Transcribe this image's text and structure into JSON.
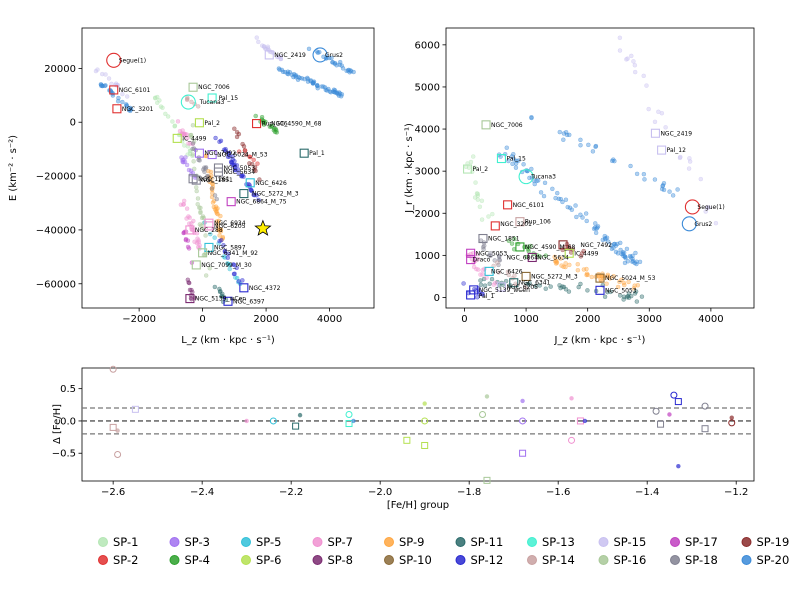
{
  "chart_data": [
    {
      "type": "scatter",
      "id": "energy",
      "xlabel": "L_z (km · kpc · s⁻¹)",
      "ylabel": "E (km⁻² · s⁻²)",
      "xlim": [
        -3800,
        5400
      ],
      "ylim": [
        -69000,
        35000
      ],
      "xticks": [
        -2000,
        0,
        2000,
        4000
      ],
      "yticks": [
        -60000,
        -40000,
        -20000,
        0,
        20000
      ],
      "xtick_labels": [
        "−2000",
        "0",
        "2000",
        "4000"
      ],
      "ytick_labels": [
        "−60000",
        "−40000",
        "−20000",
        "0",
        "20000"
      ],
      "annotations": [
        {
          "text": "Segue(1)",
          "x": -2800,
          "y": 23000
        },
        {
          "text": "NGC_6101",
          "x": -2800,
          "y": 12000
        },
        {
          "text": "NGC_3201",
          "x": -2700,
          "y": 5000
        },
        {
          "text": "NGC_7006",
          "x": -300,
          "y": 13000
        },
        {
          "text": "Tucana3",
          "x": -250,
          "y": 7500
        },
        {
          "text": "Pal_15",
          "x": 350,
          "y": 9000
        },
        {
          "text": "Pal_2",
          "x": -100,
          "y": -200
        },
        {
          "text": "IC_4499",
          "x": -800,
          "y": -6000
        },
        {
          "text": "NGC_7492",
          "x": -100,
          "y": -11500
        },
        {
          "text": "NGC_5024_M_53",
          "x": 300,
          "y": -12000
        },
        {
          "text": "NGC_5053",
          "x": 500,
          "y": -17000
        },
        {
          "text": "NGC_5634",
          "x": 500,
          "y": -18500
        },
        {
          "text": "NGC_1261",
          "x": -300,
          "y": -21000
        },
        {
          "text": "NGC_1851",
          "x": -200,
          "y": -21500
        },
        {
          "text": "NGC_6426",
          "x": 1500,
          "y": -22500
        },
        {
          "text": "NGC_5272_M_3",
          "x": 1400,
          "y": -26500
        },
        {
          "text": "NGC_6864_M_75",
          "x": 900,
          "y": -29500
        },
        {
          "text": "NGC_288",
          "x": -400,
          "y": -40000
        },
        {
          "text": "NGC_6934",
          "x": 200,
          "y": -37500
        },
        {
          "text": "NGC_6205",
          "x": 200,
          "y": -38500
        },
        {
          "text": "NGC_5897",
          "x": 200,
          "y": -46500
        },
        {
          "text": "NGC_6341_M_92",
          "x": 0,
          "y": -48500
        },
        {
          "text": "NGC_7099_M_30",
          "x": -200,
          "y": -53000
        },
        {
          "text": "NGC_4372",
          "x": 1300,
          "y": -61500
        },
        {
          "text": "NGC_5139_wCen",
          "x": -400,
          "y": -65500
        },
        {
          "text": "NGC_6397",
          "x": 800,
          "y": -66500
        },
        {
          "text": "NGC_2419",
          "x": 2100,
          "y": 25000
        },
        {
          "text": "Grus2",
          "x": 3700,
          "y": 25000
        },
        {
          "text": "Rup_106",
          "x": 1700,
          "y": -500
        },
        {
          "text": "NGC_4590_M_68",
          "x": 2000,
          "y": -500
        },
        {
          "text": "Pal_1",
          "x": 3200,
          "y": -11500
        }
      ]
    },
    {
      "type": "scatter",
      "id": "actions",
      "xlabel": "J_z (km · kpc · s⁻¹)",
      "ylabel": "J_r (km · kpc · s⁻¹)",
      "xlim": [
        -300,
        4700
      ],
      "ylim": [
        -250,
        6400
      ],
      "xticks": [
        0,
        1000,
        2000,
        3000,
        4000
      ],
      "yticks": [
        0,
        1000,
        2000,
        3000,
        4000,
        5000,
        6000
      ],
      "xtick_labels": [
        "0",
        "1000",
        "2000",
        "3000",
        "4000"
      ],
      "ytick_labels": [
        "0",
        "1000",
        "2000",
        "3000",
        "4000",
        "5000",
        "6000"
      ],
      "annotations": [
        {
          "text": "NGC_7006",
          "x": 350,
          "y": 4100
        },
        {
          "text": "Pal_15",
          "x": 600,
          "y": 3300
        },
        {
          "text": "Pal_2",
          "x": 50,
          "y": 3050
        },
        {
          "text": "Tucana3",
          "x": 1000,
          "y": 2870
        },
        {
          "text": "NGC_6101",
          "x": 700,
          "y": 2200
        },
        {
          "text": "NGC_3201",
          "x": 500,
          "y": 1750
        },
        {
          "text": "Rup_106",
          "x": 900,
          "y": 1800
        },
        {
          "text": "NGC_1851",
          "x": 300,
          "y": 1400
        },
        {
          "text": "NGC_7492",
          "x": 1800,
          "y": 1250
        },
        {
          "text": "NGC_4590_M_68",
          "x": 900,
          "y": 1200
        },
        {
          "text": "IC_4499",
          "x": 1700,
          "y": 1050
        },
        {
          "text": "NGC_5634",
          "x": 1100,
          "y": 950
        },
        {
          "text": "NGC_5053",
          "x": 100,
          "y": 1050
        },
        {
          "text": "NGC_6864",
          "x": 600,
          "y": 950
        },
        {
          "text": "Draco",
          "x": 50,
          "y": 900
        },
        {
          "text": "NGC_6426",
          "x": 350,
          "y": 620
        },
        {
          "text": "NGC_5272_M_3",
          "x": 1000,
          "y": 500
        },
        {
          "text": "NGC_6341",
          "x": 800,
          "y": 350
        },
        {
          "text": "NGC_6205",
          "x": 600,
          "y": 250
        },
        {
          "text": "NGC_5139_wCen",
          "x": 150,
          "y": 180
        },
        {
          "text": "Pal_1",
          "x": 150,
          "y": 40
        },
        {
          "text": "NGC_5024_M_53",
          "x": 2200,
          "y": 460
        },
        {
          "text": "NGC_5053",
          "x": 2200,
          "y": 170
        },
        {
          "text": "NGC_2419",
          "x": 3100,
          "y": 3900
        },
        {
          "text": "Pal_12",
          "x": 3200,
          "y": 3500
        },
        {
          "text": "Segue(1)",
          "x": 3700,
          "y": 2150
        },
        {
          "text": "Grus2",
          "x": 3650,
          "y": 1750
        }
      ]
    },
    {
      "type": "scatter",
      "id": "metallicity",
      "xlabel": "[Fe/H] group",
      "ylabel": "Δ [Fe/H]",
      "xlim": [
        -2.67,
        -1.16
      ],
      "ylim": [
        -0.93,
        0.82
      ],
      "xticks": [
        -2.6,
        -2.4,
        -2.2,
        -2.0,
        -1.8,
        -1.6,
        -1.4,
        -1.2
      ],
      "yticks": [
        -0.5,
        0.0,
        0.5
      ],
      "xtick_labels": [
        "−2.6",
        "−2.4",
        "−2.2",
        "−2.0",
        "−1.8",
        "−1.6",
        "−1.4",
        "−1.2"
      ],
      "ytick_labels": [
        "−0.5",
        "0.0",
        "0.5"
      ],
      "hlines": [
        0.2,
        0.0,
        -0.2
      ],
      "points": [
        {
          "x": -2.6,
          "y": 0.8,
          "g": 13
        },
        {
          "x": -2.6,
          "y": -0.1,
          "g": 13
        },
        {
          "x": -2.59,
          "y": -0.15,
          "g": 13
        },
        {
          "x": -2.59,
          "y": -0.52,
          "g": 13
        },
        {
          "x": -2.55,
          "y": 0.18,
          "g": 14
        },
        {
          "x": -2.3,
          "y": 0.0,
          "g": 6
        },
        {
          "x": -2.24,
          "y": 0.0,
          "g": 4
        },
        {
          "x": -2.19,
          "y": -0.08,
          "g": 10
        },
        {
          "x": -2.18,
          "y": 0.09,
          "g": 10
        },
        {
          "x": -2.07,
          "y": 0.1,
          "g": 12
        },
        {
          "x": -2.07,
          "y": -0.04,
          "g": 12
        },
        {
          "x": -2.06,
          "y": 0.0,
          "g": 19
        },
        {
          "x": -1.94,
          "y": 0.57,
          "g": 20
        },
        {
          "x": -1.94,
          "y": -0.3,
          "g": 5
        },
        {
          "x": -1.9,
          "y": 0.27,
          "g": 5
        },
        {
          "x": -1.9,
          "y": 0.0,
          "g": 5
        },
        {
          "x": -1.9,
          "y": -0.38,
          "g": 5
        },
        {
          "x": -1.76,
          "y": 0.38,
          "g": 15
        },
        {
          "x": -1.77,
          "y": 0.1,
          "g": 15
        },
        {
          "x": -1.76,
          "y": -0.92,
          "g": 15
        },
        {
          "x": -1.68,
          "y": 0.31,
          "g": 2
        },
        {
          "x": -1.68,
          "y": 0.0,
          "g": 2
        },
        {
          "x": -1.68,
          "y": -0.5,
          "g": 2
        },
        {
          "x": -1.57,
          "y": 0.35,
          "g": 6
        },
        {
          "x": -1.57,
          "y": -0.3,
          "g": 6
        },
        {
          "x": -1.55,
          "y": 0.0,
          "g": 6
        },
        {
          "x": -1.54,
          "y": 0.0,
          "g": 11
        },
        {
          "x": -1.38,
          "y": 0.15,
          "g": 17
        },
        {
          "x": -1.37,
          "y": -0.05,
          "g": 17
        },
        {
          "x": -1.35,
          "y": 0.1,
          "g": 16
        },
        {
          "x": -1.34,
          "y": 0.4,
          "g": 11
        },
        {
          "x": -1.33,
          "y": 0.3,
          "g": 11
        },
        {
          "x": -1.33,
          "y": -0.7,
          "g": 11
        },
        {
          "x": -1.27,
          "y": 0.23,
          "g": 17
        },
        {
          "x": -1.27,
          "y": -0.12,
          "g": 17
        },
        {
          "x": -1.21,
          "y": 0.05,
          "g": 18
        },
        {
          "x": -1.21,
          "y": -0.03,
          "g": 18
        }
      ]
    }
  ],
  "legend": [
    {
      "label": "SP-1",
      "color": "#b4e6b4"
    },
    {
      "label": "SP-2",
      "color": "#e03030"
    },
    {
      "label": "SP-3",
      "color": "#a070f0"
    },
    {
      "label": "SP-4",
      "color": "#2ca02c"
    },
    {
      "label": "SP-5",
      "color": "#30c0d8"
    },
    {
      "label": "SP-6",
      "color": "#b4e050"
    },
    {
      "label": "SP-7",
      "color": "#f090d0"
    },
    {
      "label": "SP-8",
      "color": "#7a2a70"
    },
    {
      "label": "SP-9",
      "color": "#ffa640"
    },
    {
      "label": "SP-10",
      "color": "#8a6a38"
    },
    {
      "label": "SP-11",
      "color": "#2a6a6a"
    },
    {
      "label": "SP-12",
      "color": "#2828d0"
    },
    {
      "label": "SP-13",
      "color": "#40f0d0"
    },
    {
      "label": "SP-14",
      "color": "#c8a0a0"
    },
    {
      "label": "SP-15",
      "color": "#c8c0f0"
    },
    {
      "label": "SP-16",
      "color": "#a8c898"
    },
    {
      "label": "SP-17",
      "color": "#c040c0"
    },
    {
      "label": "SP-18",
      "color": "#808090"
    },
    {
      "label": "SP-19",
      "color": "#8a2a2a"
    },
    {
      "label": "SP-20",
      "color": "#3a8ad8"
    }
  ]
}
